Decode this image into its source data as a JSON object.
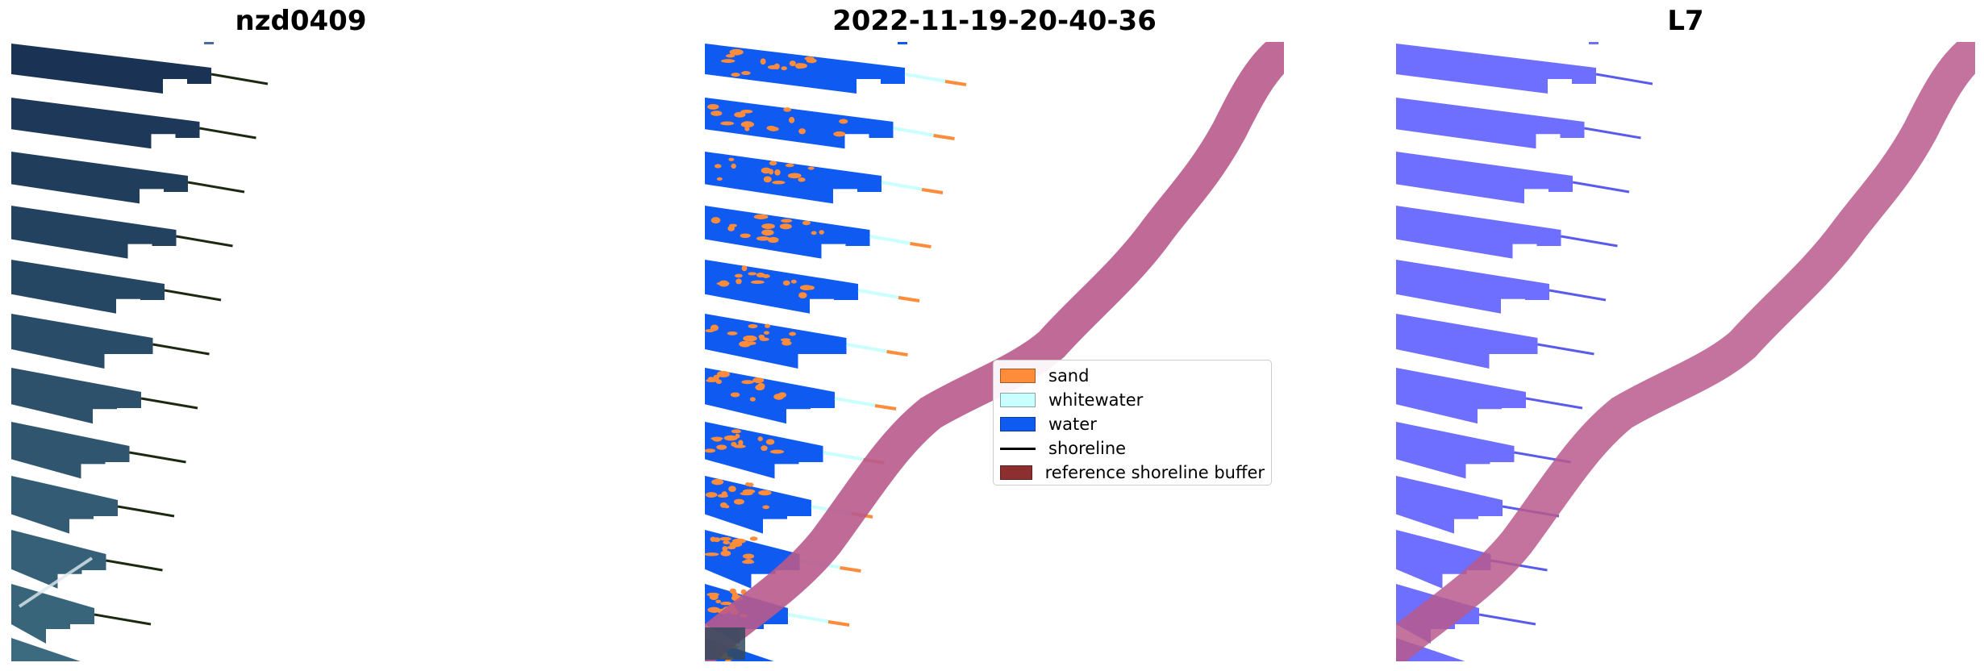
{
  "panels": [
    {
      "title": "nzd0409"
    },
    {
      "title": "2022-11-19-20-40-36"
    },
    {
      "title": "L7"
    }
  ],
  "legend": {
    "items": [
      {
        "label": "sand",
        "kind": "patch",
        "color": "#ff8c3a"
      },
      {
        "label": "whitewater",
        "kind": "patch",
        "color": "#c9ffff"
      },
      {
        "label": "water",
        "kind": "patch",
        "color": "#0f5af0"
      },
      {
        "label": "shoreline",
        "kind": "line",
        "color": "#000000"
      },
      {
        "label": "reference shoreline buffer",
        "kind": "patch",
        "color": "#8e2f2f"
      }
    ]
  },
  "colors": {
    "rgb_water_dark": "#1a3355",
    "rgb_water_light": "#3c6a7e",
    "class_water": "#0f5af0",
    "class_sand": "#ff8c3a",
    "class_whitewater": "#c9ffff",
    "buffer_overlay": "#b85a8c",
    "mask_water": "#6e6eff",
    "mask_line": "#5a5aee",
    "shoreline_tail": "#1a2a10"
  }
}
